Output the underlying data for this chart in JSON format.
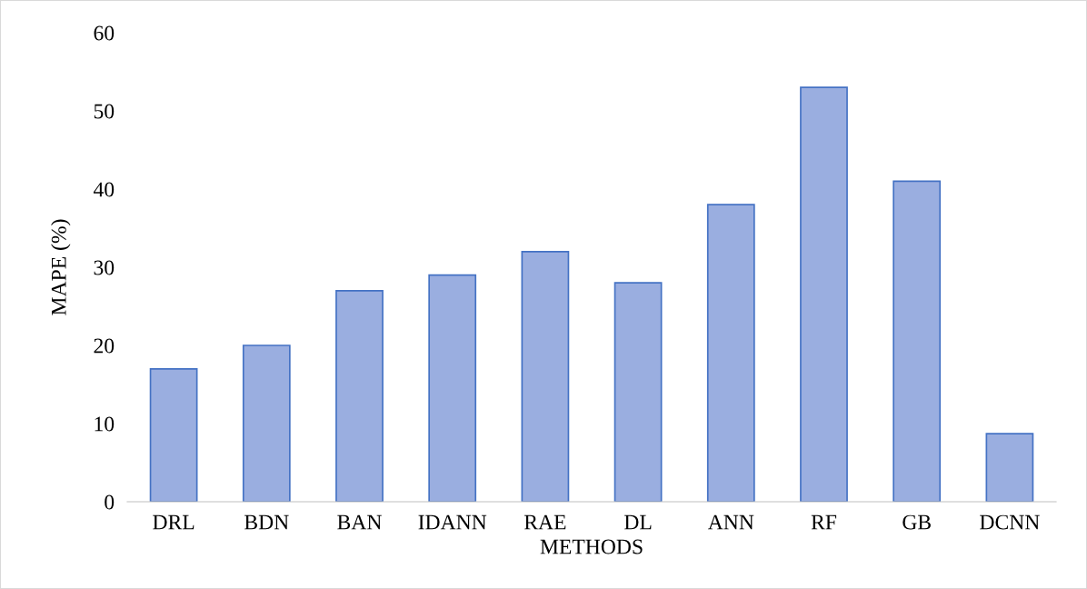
{
  "chart_data": {
    "type": "bar",
    "xlabel": "METHODS",
    "ylabel": "MAPE (%)",
    "categories": [
      "DRL",
      "BDN",
      "BAN",
      "IDANN",
      "RAE",
      "DL",
      "ANN",
      "RF",
      "GB",
      "DCNN"
    ],
    "values": [
      17,
      20,
      27,
      29,
      32,
      28,
      38,
      53,
      41,
      8.7
    ],
    "color": "#9aaee0",
    "ylim": [
      0,
      60
    ],
    "yticks": [
      0,
      10,
      20,
      30,
      40,
      50,
      60
    ],
    "grid": false,
    "legend": false
  }
}
